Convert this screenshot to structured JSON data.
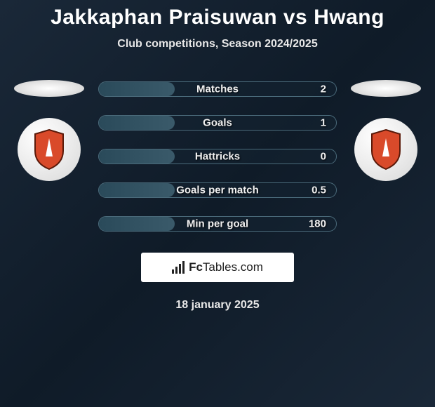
{
  "title": "Jakkaphan Praisuwan vs Hwang",
  "subtitle": "Club competitions, Season 2024/2025",
  "stats": [
    {
      "label": "Matches",
      "value": "2",
      "fill_pct": 32
    },
    {
      "label": "Goals",
      "value": "1",
      "fill_pct": 32
    },
    {
      "label": "Hattricks",
      "value": "0",
      "fill_pct": 32
    },
    {
      "label": "Goals per match",
      "value": "0.5",
      "fill_pct": 32
    },
    {
      "label": "Min per goal",
      "value": "180",
      "fill_pct": 32
    }
  ],
  "footer": {
    "brand_prefix": "Fc",
    "brand_suffix": "Tables.com",
    "date": "18 january 2025"
  },
  "colors": {
    "shield_fill": "#d94a2a",
    "shield_stroke": "#5a1a0a",
    "shield_inner": "#ffffff"
  }
}
